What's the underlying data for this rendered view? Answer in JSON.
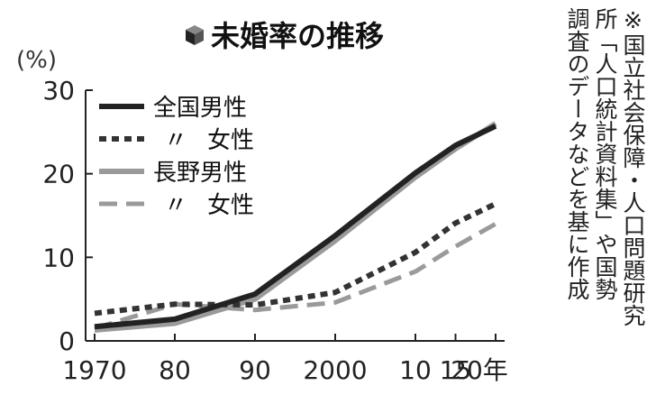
{
  "chart_data": {
    "type": "line",
    "title": "未婚率の推移",
    "ylabel": "(%)",
    "ylim": [
      0,
      30
    ],
    "yticks": [
      0,
      10,
      20,
      30
    ],
    "x": [
      1970,
      1980,
      1990,
      2000,
      2010,
      2015,
      2020
    ],
    "x_tick_labels": [
      "1970",
      "80",
      "90",
      "2000",
      "10",
      "15",
      "20年"
    ],
    "grid": false,
    "legend_position": "top-left",
    "series": [
      {
        "name": "全国男性",
        "style": "solid",
        "color": "#222222",
        "values": [
          1.7,
          2.6,
          5.6,
          12.6,
          20.1,
          23.4,
          25.7
        ]
      },
      {
        "name": "〃 女性",
        "legend_mark": "〃",
        "legend_text": "女性",
        "style": "dotted",
        "color": "#333333",
        "values": [
          3.3,
          4.4,
          4.3,
          5.8,
          10.6,
          14.1,
          16.4
        ]
      },
      {
        "name": "長野男性",
        "style": "solid",
        "color": "#9a9a9a",
        "values": [
          1.3,
          2.1,
          5.0,
          12.0,
          19.6,
          23.0,
          26.0
        ]
      },
      {
        "name": "〃 女性",
        "legend_mark": "〃",
        "legend_text": "女性",
        "style": "dashed",
        "color": "#9a9a9a",
        "values": [
          1.5,
          4.4,
          3.7,
          4.6,
          8.3,
          11.3,
          14.0
        ]
      }
    ]
  },
  "note_lines": [
    "※国立社会保障・人口問題研究",
    "所「人口統計資料集」や国勢",
    "調査のデータなどを基に作成"
  ],
  "title_icon": "cube-icon"
}
